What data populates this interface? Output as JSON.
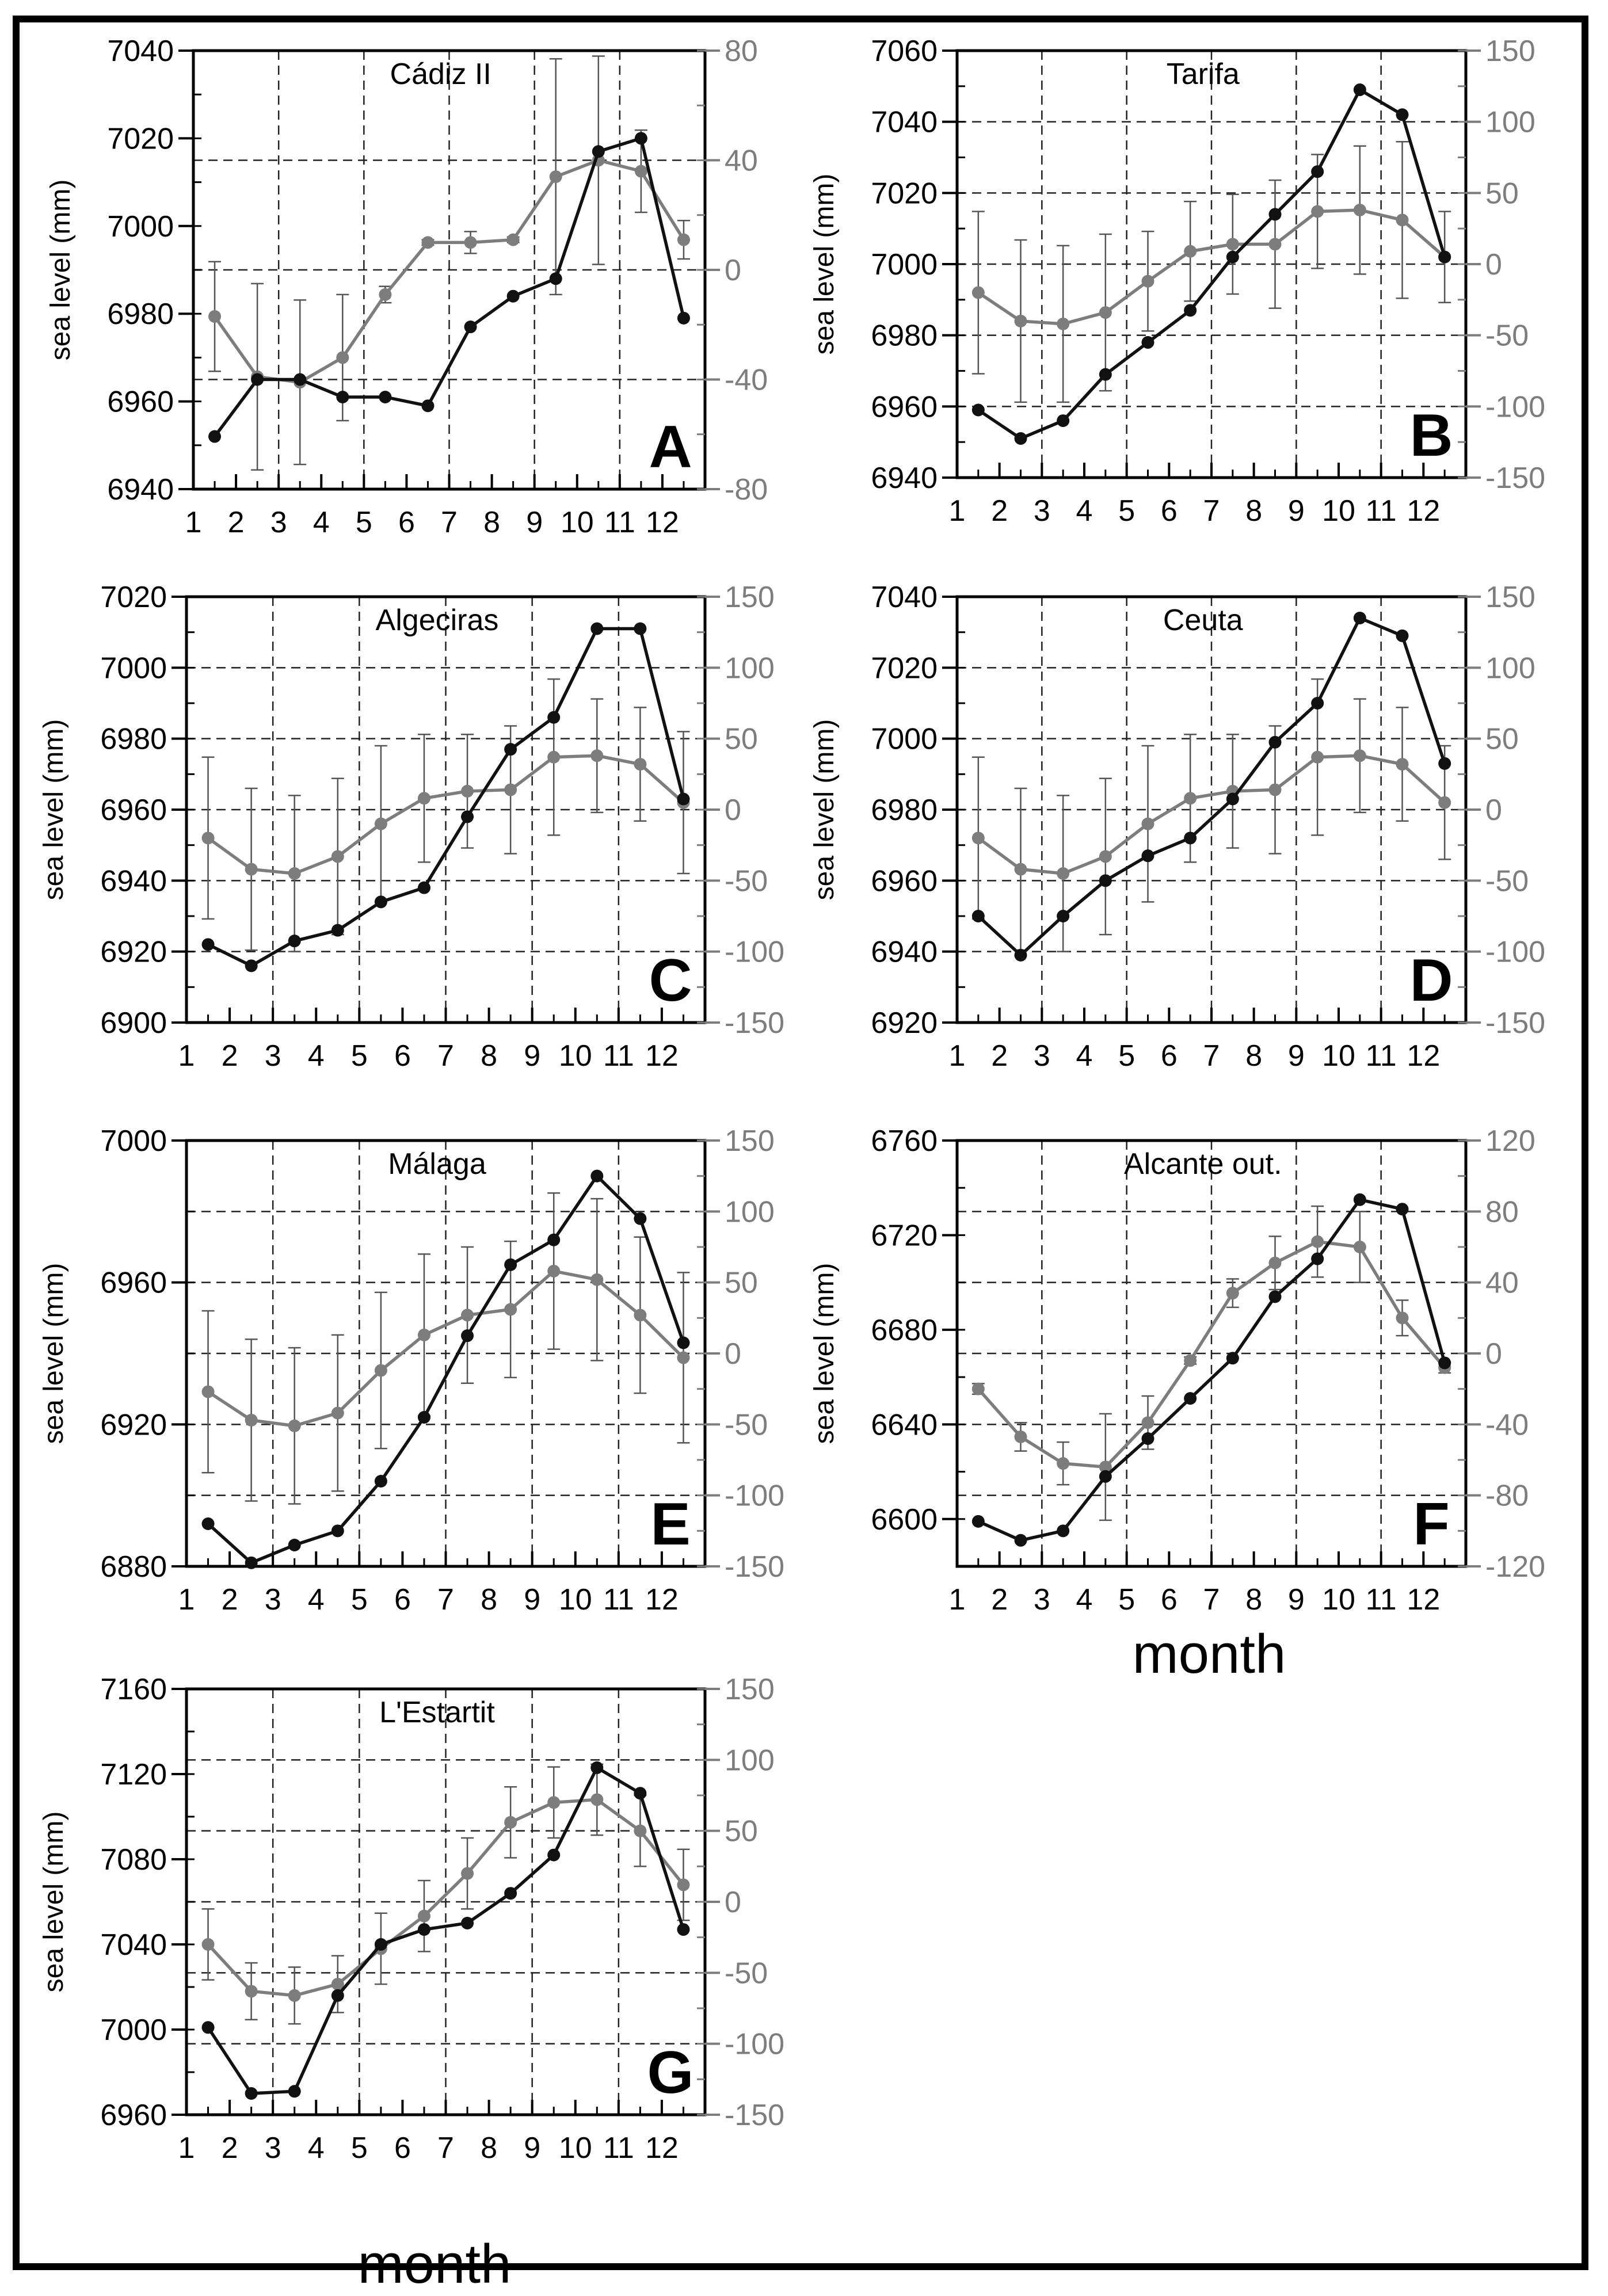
{
  "figure": {
    "month_label": "month",
    "black_color": "#111111",
    "gray_color": "#7d7d7d",
    "frame_color": "#000000"
  },
  "chart_data": [
    {
      "type": "line",
      "letter": "A",
      "title": "Cádiz II",
      "ylabel": "sea level (mm)",
      "x_ticks": [
        "1",
        "2",
        "3",
        "4",
        "5",
        "6",
        "7",
        "8",
        "9",
        "10",
        "11",
        "12"
      ],
      "xlim": [
        1,
        13
      ],
      "ylim_left": [
        6940,
        7040
      ],
      "yticks_left": [
        6940,
        6960,
        6980,
        7000,
        7020,
        7040
      ],
      "ylim_right": [
        -80,
        80
      ],
      "yticks_right": [
        -80,
        -40,
        0,
        40,
        80
      ],
      "series": [
        {
          "name": "sea level",
          "axis": "left",
          "color": "black",
          "x": [
            1.5,
            2.5,
            3.5,
            4.5,
            5.5,
            6.5,
            7.5,
            8.5,
            9.5,
            10.5,
            11.5,
            12.5
          ],
          "values": [
            6952,
            6965,
            6965,
            6961,
            6961,
            6959,
            6977,
            6984,
            6988,
            7017,
            7020,
            6979
          ]
        },
        {
          "name": "anomaly",
          "axis": "right",
          "color": "gray",
          "x": [
            1.5,
            2.5,
            3.5,
            4.5,
            5.5,
            6.5,
            7.5,
            8.5,
            9.5,
            10.5,
            11.5,
            12.5
          ],
          "values": [
            -17,
            -39,
            -41,
            -32,
            -9,
            10,
            10,
            11,
            34,
            40,
            36,
            11
          ],
          "errors": [
            20,
            34,
            30,
            23,
            3,
            1,
            4,
            1,
            43,
            38,
            15,
            7
          ]
        }
      ]
    },
    {
      "type": "line",
      "letter": "B",
      "title": "Tarifa",
      "ylabel": "sea level (mm)",
      "x_ticks": [
        "1",
        "2",
        "3",
        "4",
        "5",
        "6",
        "7",
        "8",
        "9",
        "10",
        "11",
        "12"
      ],
      "xlim": [
        1,
        13
      ],
      "ylim_left": [
        6940,
        7060
      ],
      "yticks_left": [
        6940,
        6960,
        6980,
        7000,
        7020,
        7040,
        7060
      ],
      "ylim_right": [
        -150,
        150
      ],
      "yticks_right": [
        -150,
        -100,
        -50,
        0,
        50,
        100,
        150
      ],
      "series": [
        {
          "name": "sea level",
          "axis": "left",
          "color": "black",
          "x": [
            1.5,
            2.5,
            3.5,
            4.5,
            5.5,
            6.5,
            7.5,
            8.5,
            9.5,
            10.5,
            11.5,
            12.5
          ],
          "values": [
            6959,
            6951,
            6956,
            6969,
            6978,
            6987,
            7002,
            7014,
            7026,
            7049,
            7042,
            7002
          ]
        },
        {
          "name": "anomaly",
          "axis": "right",
          "color": "gray",
          "x": [
            1.5,
            2.5,
            3.5,
            4.5,
            5.5,
            6.5,
            7.5,
            8.5,
            9.5,
            10.5,
            11.5,
            12.5
          ],
          "values": [
            -20,
            -40,
            -42,
            -34,
            -12,
            9,
            14,
            14,
            37,
            38,
            31,
            5
          ],
          "errors": [
            57,
            57,
            55,
            55,
            35,
            35,
            35,
            45,
            40,
            45,
            55,
            32
          ]
        }
      ]
    },
    {
      "type": "line",
      "letter": "C",
      "title": "Algeciras",
      "ylabel": "sea level (mm)",
      "x_ticks": [
        "1",
        "2",
        "3",
        "4",
        "5",
        "6",
        "7",
        "8",
        "9",
        "10",
        "11",
        "12"
      ],
      "xlim": [
        1,
        13
      ],
      "ylim_left": [
        6900,
        7020
      ],
      "yticks_left": [
        6900,
        6920,
        6940,
        6960,
        6980,
        7000,
        7020
      ],
      "ylim_right": [
        -150,
        150
      ],
      "yticks_right": [
        -150,
        -100,
        -50,
        0,
        50,
        100,
        150
      ],
      "series": [
        {
          "name": "sea level",
          "axis": "left",
          "color": "black",
          "x": [
            1.5,
            2.5,
            3.5,
            4.5,
            5.5,
            6.5,
            7.5,
            8.5,
            9.5,
            10.5,
            11.5,
            12.5
          ],
          "values": [
            6922,
            6916,
            6923,
            6926,
            6934,
            6938,
            6958,
            6977,
            6986,
            7011,
            7011,
            6963
          ]
        },
        {
          "name": "anomaly",
          "axis": "right",
          "color": "gray",
          "x": [
            1.5,
            2.5,
            3.5,
            4.5,
            5.5,
            6.5,
            7.5,
            8.5,
            9.5,
            10.5,
            11.5,
            12.5
          ],
          "values": [
            -20,
            -42,
            -45,
            -33,
            -10,
            8,
            13,
            14,
            37,
            38,
            32,
            5
          ],
          "errors": [
            57,
            57,
            55,
            55,
            55,
            45,
            40,
            45,
            55,
            40,
            40,
            50
          ]
        }
      ]
    },
    {
      "type": "line",
      "letter": "D",
      "title": "Ceuta",
      "ylabel": "sea level (mm)",
      "x_ticks": [
        "1",
        "2",
        "3",
        "4",
        "5",
        "6",
        "7",
        "8",
        "9",
        "10",
        "11",
        "12"
      ],
      "xlim": [
        1,
        13
      ],
      "ylim_left": [
        6920,
        7040
      ],
      "yticks_left": [
        6920,
        6940,
        6960,
        6980,
        7000,
        7020,
        7040
      ],
      "ylim_right": [
        -150,
        150
      ],
      "yticks_right": [
        -150,
        -100,
        -50,
        0,
        50,
        100,
        150
      ],
      "series": [
        {
          "name": "sea level",
          "axis": "left",
          "color": "black",
          "x": [
            1.5,
            2.5,
            3.5,
            4.5,
            5.5,
            6.5,
            7.5,
            8.5,
            9.5,
            10.5,
            11.5,
            12.5
          ],
          "values": [
            6950,
            6939,
            6950,
            6960,
            6967,
            6972,
            6983,
            6999,
            7010,
            7034,
            7029,
            6993
          ]
        },
        {
          "name": "anomaly",
          "axis": "right",
          "color": "gray",
          "x": [
            1.5,
            2.5,
            3.5,
            4.5,
            5.5,
            6.5,
            7.5,
            8.5,
            9.5,
            10.5,
            11.5,
            12.5
          ],
          "values": [
            -20,
            -42,
            -45,
            -33,
            -10,
            8,
            13,
            14,
            37,
            38,
            32,
            5
          ],
          "errors": [
            57,
            57,
            55,
            55,
            55,
            45,
            40,
            45,
            55,
            40,
            40,
            40
          ]
        }
      ]
    },
    {
      "type": "line",
      "letter": "E",
      "title": "Málaga",
      "ylabel": "sea level (mm)",
      "x_ticks": [
        "1",
        "2",
        "3",
        "4",
        "5",
        "6",
        "7",
        "8",
        "9",
        "10",
        "11",
        "12"
      ],
      "xlim": [
        1,
        13
      ],
      "ylim_left": [
        6880,
        7000
      ],
      "yticks_left": [
        6880,
        6920,
        6960,
        7000
      ],
      "ylim_right": [
        -150,
        150
      ],
      "yticks_right": [
        -150,
        -100,
        -50,
        0,
        50,
        100,
        150
      ],
      "series": [
        {
          "name": "sea level",
          "axis": "left",
          "color": "black",
          "x": [
            1.5,
            2.5,
            3.5,
            4.5,
            5.5,
            6.5,
            7.5,
            8.5,
            9.5,
            10.5,
            11.5,
            12.5
          ],
          "values": [
            6892,
            6881,
            6886,
            6890,
            6904,
            6922,
            6945,
            6965,
            6972,
            6990,
            6978,
            6943
          ]
        },
        {
          "name": "anomaly",
          "axis": "right",
          "color": "gray",
          "x": [
            1.5,
            2.5,
            3.5,
            4.5,
            5.5,
            6.5,
            7.5,
            8.5,
            9.5,
            10.5,
            11.5,
            12.5
          ],
          "values": [
            -27,
            -47,
            -51,
            -42,
            -12,
            13,
            27,
            31,
            58,
            52,
            27,
            -3
          ],
          "errors": [
            57,
            57,
            55,
            55,
            55,
            57,
            48,
            48,
            55,
            57,
            55,
            60
          ]
        }
      ]
    },
    {
      "type": "line",
      "letter": "F",
      "title": "Alcante out.",
      "ylabel": "sea level (mm)",
      "x_ticks": [
        "1",
        "2",
        "3",
        "4",
        "5",
        "6",
        "7",
        "8",
        "9",
        "10",
        "11",
        "12"
      ],
      "xlim": [
        1,
        13
      ],
      "ylim_left": [
        6580,
        6760
      ],
      "yticks_left": [
        6600,
        6640,
        6680,
        6720,
        6760
      ],
      "ylim_right": [
        -120,
        120
      ],
      "yticks_right": [
        -120,
        -80,
        -40,
        0,
        40,
        80,
        120
      ],
      "series": [
        {
          "name": "sea level",
          "axis": "left",
          "color": "black",
          "x": [
            1.5,
            2.5,
            3.5,
            4.5,
            5.5,
            6.5,
            7.5,
            8.5,
            9.5,
            10.5,
            11.5,
            12.5
          ],
          "values": [
            6599,
            6591,
            6595,
            6618,
            6634,
            6651,
            6668,
            6694,
            6710,
            6735,
            6731,
            6666
          ]
        },
        {
          "name": "anomaly",
          "axis": "right",
          "color": "gray",
          "x": [
            1.5,
            2.5,
            3.5,
            4.5,
            5.5,
            6.5,
            7.5,
            8.5,
            9.5,
            10.5,
            11.5,
            12.5
          ],
          "values": [
            -20,
            -47,
            -62,
            -64,
            -39,
            -4,
            34,
            51,
            63,
            60,
            20,
            -8
          ],
          "errors": [
            3,
            8,
            12,
            30,
            15,
            2,
            8,
            15,
            20,
            20,
            10,
            3
          ]
        }
      ]
    },
    {
      "type": "line",
      "letter": "G",
      "title": "L'Estartit",
      "ylabel": "sea level (mm)",
      "x_ticks": [
        "1",
        "2",
        "3",
        "4",
        "5",
        "6",
        "7",
        "8",
        "9",
        "10",
        "11",
        "12"
      ],
      "xlim": [
        1,
        13
      ],
      "ylim_left": [
        6960,
        7160
      ],
      "yticks_left": [
        6960,
        7000,
        7040,
        7080,
        7120,
        7160
      ],
      "ylim_right": [
        -150,
        150
      ],
      "yticks_right": [
        -150,
        -100,
        -50,
        0,
        50,
        100,
        150
      ],
      "series": [
        {
          "name": "sea level",
          "axis": "left",
          "color": "black",
          "x": [
            1.5,
            2.5,
            3.5,
            4.5,
            5.5,
            6.5,
            7.5,
            8.5,
            9.5,
            10.5,
            11.5,
            12.5
          ],
          "values": [
            7001,
            6970,
            6971,
            7016,
            7040,
            7047,
            7050,
            7064,
            7082,
            7123,
            7111,
            7047
          ]
        },
        {
          "name": "anomaly",
          "axis": "right",
          "color": "gray",
          "x": [
            1.5,
            2.5,
            3.5,
            4.5,
            5.5,
            6.5,
            7.5,
            8.5,
            9.5,
            10.5,
            11.5,
            12.5
          ],
          "values": [
            -30,
            -63,
            -66,
            -58,
            -33,
            -10,
            20,
            56,
            70,
            72,
            50,
            12
          ],
          "errors": [
            25,
            20,
            20,
            20,
            25,
            25,
            25,
            25,
            25,
            25,
            25,
            25
          ]
        }
      ]
    }
  ]
}
